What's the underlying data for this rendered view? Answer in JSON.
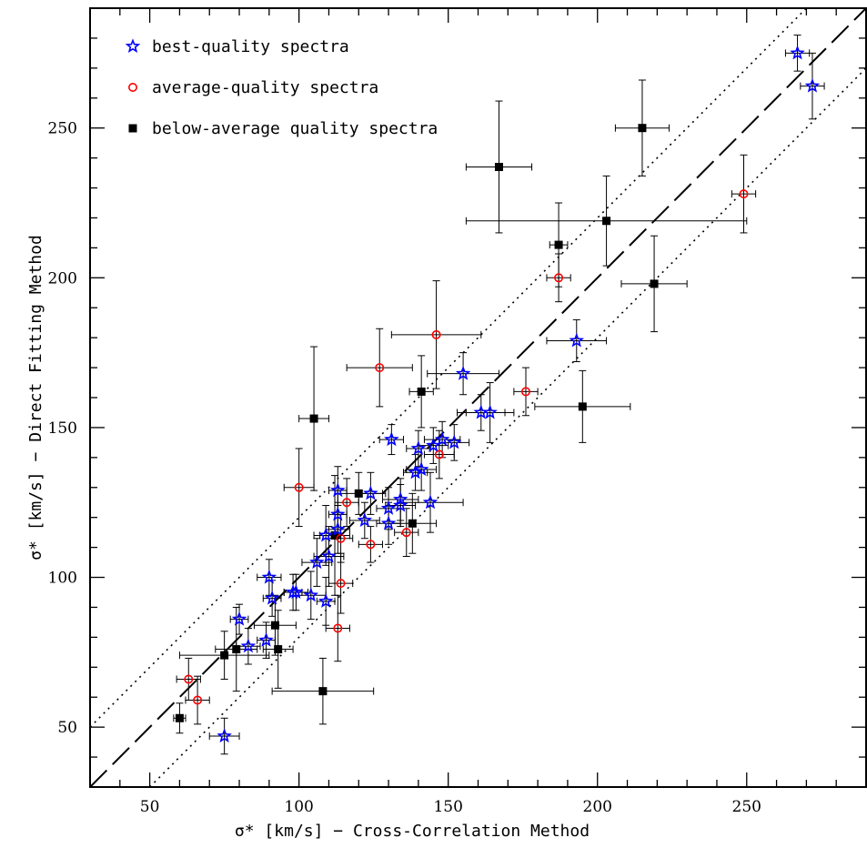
{
  "chart_data": {
    "type": "scatter",
    "xlabel": "σ* [km/s] − Cross-Correlation Method",
    "ylabel": "σ* [km/s] − Direct Fitting Method",
    "xlim": [
      30,
      290
    ],
    "ylim": [
      30,
      290
    ],
    "xticks": [
      50,
      100,
      150,
      200,
      250
    ],
    "yticks": [
      50,
      100,
      150,
      200,
      250
    ],
    "legend_placement": "top-left",
    "grid": false,
    "reference_lines": [
      {
        "name": "one-to-one",
        "style": "dashed",
        "offset": 0
      },
      {
        "name": "upper-bound",
        "style": "dotted",
        "offset": 20
      },
      {
        "name": "lower-bound",
        "style": "dotted",
        "offset": -20
      }
    ],
    "series": [
      {
        "name": "best-quality spectra",
        "marker": "star",
        "color": "#0000ff",
        "points": [
          {
            "x": 267,
            "y": 275,
            "xerr": 4,
            "yerr": 6
          },
          {
            "x": 272,
            "y": 264,
            "xerr": 4,
            "yerr": 11
          },
          {
            "x": 193,
            "y": 179,
            "xerr": 10,
            "yerr": 7
          },
          {
            "x": 155,
            "y": 168,
            "xerr": 12,
            "yerr": 7
          },
          {
            "x": 161,
            "y": 155,
            "xerr": 8,
            "yerr": 6
          },
          {
            "x": 164,
            "y": 155,
            "xerr": 8,
            "yerr": 10
          },
          {
            "x": 131,
            "y": 146,
            "xerr": 4,
            "yerr": 5
          },
          {
            "x": 140,
            "y": 143,
            "xerr": 4,
            "yerr": 6
          },
          {
            "x": 145,
            "y": 144,
            "xerr": 5,
            "yerr": 6
          },
          {
            "x": 152,
            "y": 145,
            "xerr": 5,
            "yerr": 6
          },
          {
            "x": 148,
            "y": 146,
            "xerr": 6,
            "yerr": 6
          },
          {
            "x": 141,
            "y": 136,
            "xerr": 5,
            "yerr": 7
          },
          {
            "x": 139,
            "y": 135,
            "xerr": 4,
            "yerr": 6
          },
          {
            "x": 113,
            "y": 129,
            "xerr": 3,
            "yerr": 8
          },
          {
            "x": 124,
            "y": 128,
            "xerr": 5,
            "yerr": 7
          },
          {
            "x": 134,
            "y": 126,
            "xerr": 6,
            "yerr": 7
          },
          {
            "x": 130,
            "y": 123,
            "xerr": 4,
            "yerr": 7
          },
          {
            "x": 134,
            "y": 124,
            "xerr": 5,
            "yerr": 7
          },
          {
            "x": 144,
            "y": 125,
            "xerr": 11,
            "yerr": 10
          },
          {
            "x": 113,
            "y": 121,
            "xerr": 3,
            "yerr": 8
          },
          {
            "x": 122,
            "y": 119,
            "xerr": 5,
            "yerr": 6
          },
          {
            "x": 130,
            "y": 118,
            "xerr": 4,
            "yerr": 7
          },
          {
            "x": 113,
            "y": 116,
            "xerr": 4,
            "yerr": 8
          },
          {
            "x": 109,
            "y": 114,
            "xerr": 4,
            "yerr": 10
          },
          {
            "x": 110,
            "y": 107,
            "xerr": 5,
            "yerr": 10
          },
          {
            "x": 106,
            "y": 105,
            "xerr": 5,
            "yerr": 8
          },
          {
            "x": 90,
            "y": 100,
            "xerr": 4,
            "yerr": 6
          },
          {
            "x": 98,
            "y": 95,
            "xerr": 3,
            "yerr": 6
          },
          {
            "x": 99,
            "y": 95,
            "xerr": 4,
            "yerr": 6
          },
          {
            "x": 104,
            "y": 94,
            "xerr": 5,
            "yerr": 8
          },
          {
            "x": 91,
            "y": 93,
            "xerr": 3,
            "yerr": 6
          },
          {
            "x": 109,
            "y": 92,
            "xerr": 3,
            "yerr": 8
          },
          {
            "x": 80,
            "y": 86,
            "xerr": 3,
            "yerr": 5
          },
          {
            "x": 89,
            "y": 79,
            "xerr": 3,
            "yerr": 6
          },
          {
            "x": 83,
            "y": 77,
            "xerr": 4,
            "yerr": 6
          },
          {
            "x": 75,
            "y": 47,
            "xerr": 5,
            "yerr": 6
          }
        ]
      },
      {
        "name": "average-quality spectra",
        "marker": "circle",
        "color": "#ff0000",
        "points": [
          {
            "x": 249,
            "y": 228,
            "xerr": 4,
            "yerr": 13
          },
          {
            "x": 187,
            "y": 200,
            "xerr": 4,
            "yerr": 8
          },
          {
            "x": 146,
            "y": 181,
            "xerr": 15,
            "yerr": 18
          },
          {
            "x": 127,
            "y": 170,
            "xerr": 11,
            "yerr": 13
          },
          {
            "x": 176,
            "y": 162,
            "xerr": 4,
            "yerr": 8
          },
          {
            "x": 147,
            "y": 141,
            "xerr": 5,
            "yerr": 8
          },
          {
            "x": 100,
            "y": 130,
            "xerr": 5,
            "yerr": 13
          },
          {
            "x": 116,
            "y": 125,
            "xerr": 4,
            "yerr": 8
          },
          {
            "x": 124,
            "y": 111,
            "xerr": 4,
            "yerr": 6
          },
          {
            "x": 136,
            "y": 115,
            "xerr": 4,
            "yerr": 8
          },
          {
            "x": 114,
            "y": 113,
            "xerr": 4,
            "yerr": 8
          },
          {
            "x": 114,
            "y": 98,
            "xerr": 4,
            "yerr": 10
          },
          {
            "x": 113,
            "y": 83,
            "xerr": 4,
            "yerr": 11
          },
          {
            "x": 63,
            "y": 66,
            "xerr": 4,
            "yerr": 7
          },
          {
            "x": 66,
            "y": 59,
            "xerr": 4,
            "yerr": 8
          }
        ]
      },
      {
        "name": "below-average quality spectra",
        "marker": "square",
        "color": "#000000",
        "points": [
          {
            "x": 215,
            "y": 250,
            "xerr": 9,
            "yerr": 16
          },
          {
            "x": 167,
            "y": 237,
            "xerr": 11,
            "yerr": 22
          },
          {
            "x": 203,
            "y": 219,
            "xerr": 47,
            "yerr": 15
          },
          {
            "x": 187,
            "y": 211,
            "xerr": 3,
            "yerr": 14
          },
          {
            "x": 219,
            "y": 198,
            "xerr": 11,
            "yerr": 16
          },
          {
            "x": 195,
            "y": 157,
            "xerr": 16,
            "yerr": 12
          },
          {
            "x": 141,
            "y": 162,
            "xerr": 4,
            "yerr": 12
          },
          {
            "x": 105,
            "y": 153,
            "xerr": 5,
            "yerr": 24
          },
          {
            "x": 120,
            "y": 128,
            "xerr": 8,
            "yerr": 7
          },
          {
            "x": 138,
            "y": 118,
            "xerr": 8,
            "yerr": 10
          },
          {
            "x": 112,
            "y": 114,
            "xerr": 5,
            "yerr": 20
          },
          {
            "x": 92,
            "y": 84,
            "xerr": 7,
            "yerr": 10
          },
          {
            "x": 93,
            "y": 76,
            "xerr": 5,
            "yerr": 13
          },
          {
            "x": 79,
            "y": 76,
            "xerr": 7,
            "yerr": 14
          },
          {
            "x": 75,
            "y": 74,
            "xerr": 15,
            "yerr": 8
          },
          {
            "x": 108,
            "y": 62,
            "xerr": 17,
            "yerr": 11
          },
          {
            "x": 60,
            "y": 53,
            "xerr": 2,
            "yerr": 5
          }
        ]
      }
    ]
  }
}
